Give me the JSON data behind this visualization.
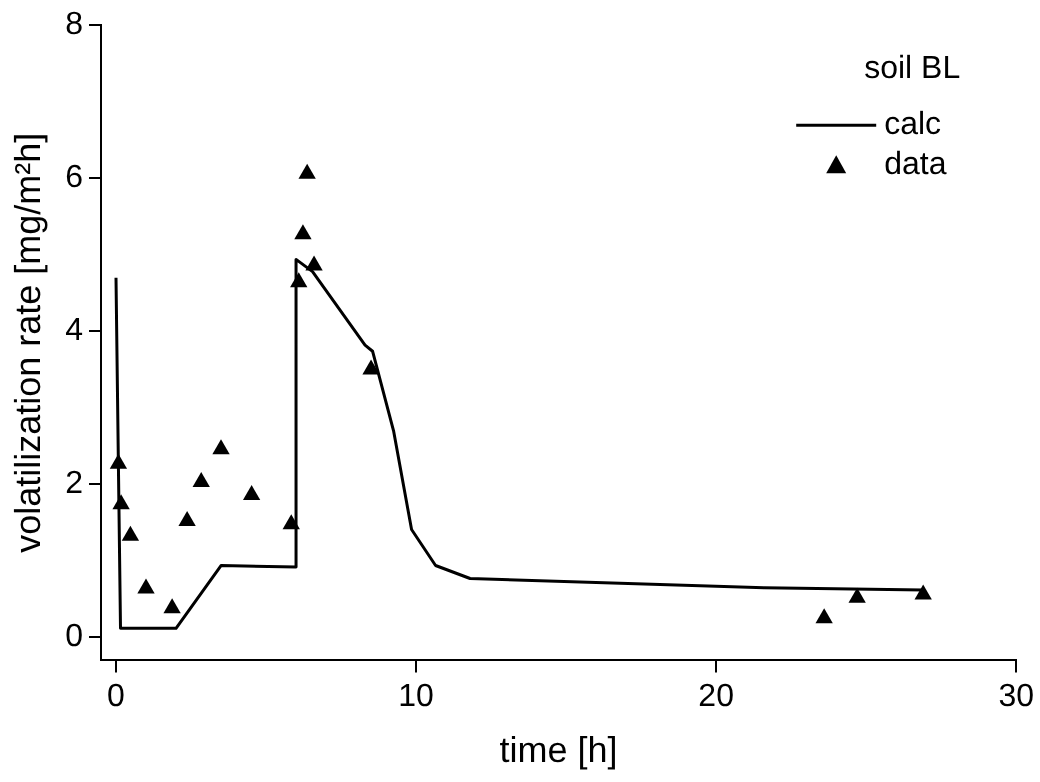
{
  "chart_data": {
    "type": "line",
    "xlabel": "time [h]",
    "ylabel": "volatilization rate [mg/m²h]",
    "legend_title": "soil BL",
    "legend": "top right",
    "grid": false,
    "xlim": [
      -0.5,
      30
    ],
    "xticks": [
      0,
      10,
      20,
      30
    ],
    "ylim": [
      -0.3,
      8
    ],
    "yticks": [
      0,
      2,
      4,
      6,
      8
    ],
    "series": [
      {
        "name": "calc",
        "color": "#000000",
        "marker": "none",
        "line_style": "solid",
        "x": [
          0.0,
          0.15,
          2.0,
          3.5,
          6.0,
          6.0,
          6.55,
          8.3,
          8.55,
          9.25,
          9.85,
          10.65,
          11.8,
          21.6,
          26.9
        ],
        "values": [
          4.7,
          0.12,
          0.12,
          0.94,
          0.92,
          4.94,
          4.78,
          3.82,
          3.74,
          2.7,
          1.41,
          0.94,
          0.77,
          0.65,
          0.62
        ]
      },
      {
        "name": "data",
        "type": "scatter",
        "color": "#000000",
        "marker": "triangle",
        "x": [
          0.08,
          0.17,
          0.48,
          1.0,
          1.87,
          2.37,
          2.84,
          3.5,
          4.52,
          5.84,
          6.09,
          6.23,
          6.37,
          6.6,
          8.5,
          23.6,
          24.7,
          26.9
        ],
        "values": [
          2.27,
          1.74,
          1.33,
          0.64,
          0.38,
          1.52,
          2.03,
          2.46,
          1.86,
          1.48,
          4.64,
          5.27,
          6.06,
          4.86,
          3.5,
          0.25,
          0.52,
          0.56
        ]
      }
    ]
  }
}
